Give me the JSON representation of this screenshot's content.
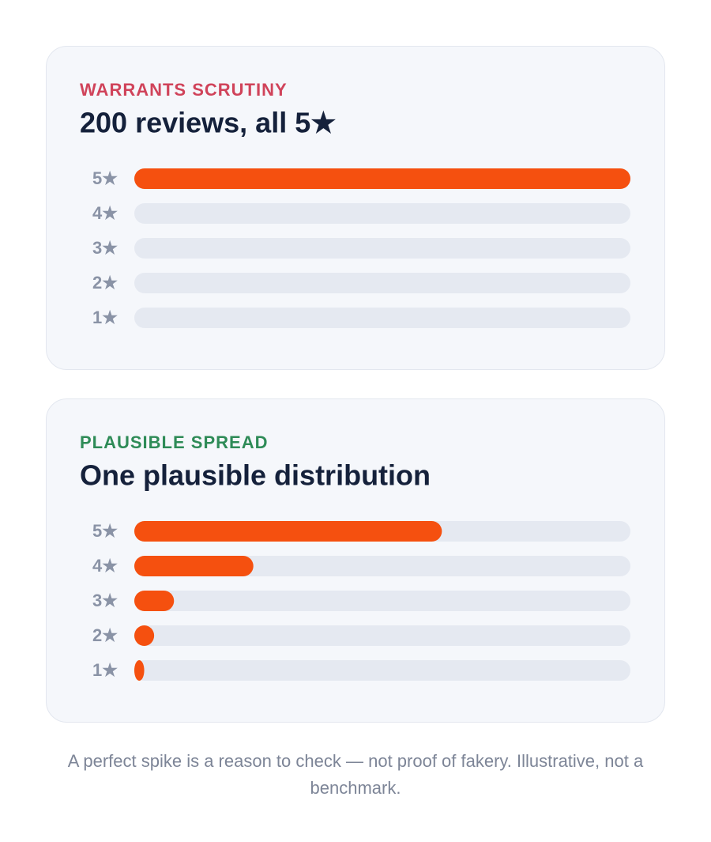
{
  "chart_data": [
    {
      "type": "bar",
      "kicker": "WARRANTS SCRUTINY",
      "kicker_color": "#d0435a",
      "title": "200 reviews, all 5★",
      "categories": [
        "5★",
        "4★",
        "3★",
        "2★",
        "1★"
      ],
      "values": [
        100,
        0,
        0,
        0,
        0
      ],
      "color": "#f5500f",
      "xlim": [
        0,
        100
      ]
    },
    {
      "type": "bar",
      "kicker": "PLAUSIBLE SPREAD",
      "kicker_color": "#2e8b57",
      "title": "One plausible distribution",
      "categories": [
        "5★",
        "4★",
        "3★",
        "2★",
        "1★"
      ],
      "values": [
        62,
        24,
        8,
        4,
        2
      ],
      "color": "#f5500f",
      "xlim": [
        0,
        100
      ]
    }
  ],
  "footnote": "A perfect spike is a reason to check — not proof of fakery. Illustrative, not a benchmark."
}
